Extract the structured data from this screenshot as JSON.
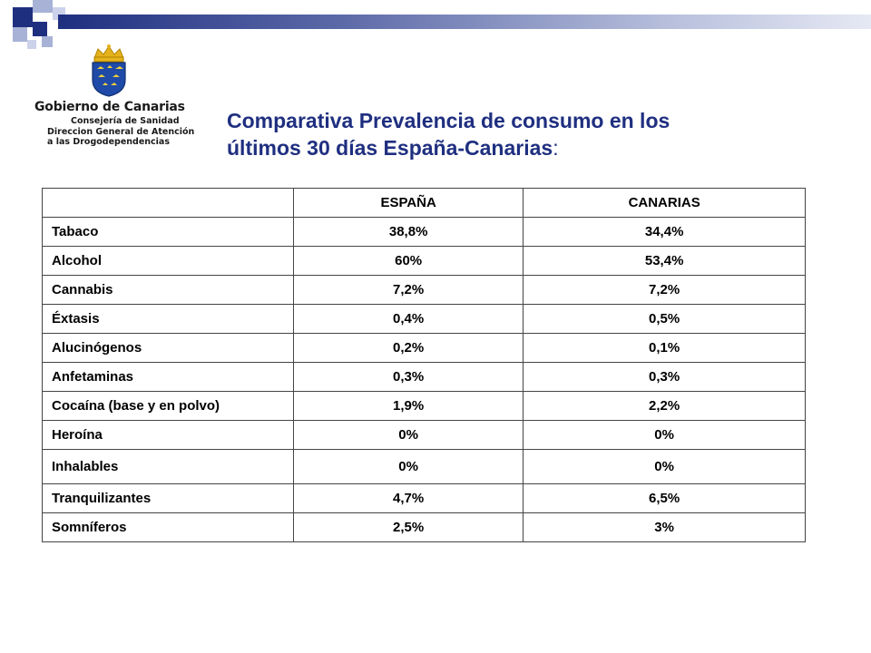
{
  "colors": {
    "primary": "#1f2f80",
    "light": "#a7b2d6"
  },
  "logo": {
    "name": "Gobierno de Canarias",
    "line1": "Consejería de Sanidad",
    "line2": "Direccion General de Atención",
    "line3": "a las Drogodependencias"
  },
  "title": {
    "line1": "Comparativa Prevalencia de consumo en los",
    "line2": "últimos 30 días España-Canarias",
    "colon": ":"
  },
  "table": {
    "headers": [
      "",
      "ESPAÑA",
      "CANARIAS"
    ],
    "rows": [
      {
        "label": "Tabaco",
        "espana": "38,8%",
        "canarias": "34,4%"
      },
      {
        "label": "Alcohol",
        "espana": "60%",
        "canarias": "53,4%"
      },
      {
        "label": "Cannabis",
        "espana": "7,2%",
        "canarias": "7,2%"
      },
      {
        "label": "Éxtasis",
        "espana": "0,4%",
        "canarias": "0,5%"
      },
      {
        "label": "Alucinógenos",
        "espana": "0,2%",
        "canarias": "0,1%"
      },
      {
        "label": "Anfetaminas",
        "espana": "0,3%",
        "canarias": "0,3%"
      },
      {
        "label": "Cocaína (base y en polvo)",
        "espana": "1,9%",
        "canarias": "2,2%"
      },
      {
        "label": "Heroína",
        "espana": "0%",
        "canarias": "0%"
      },
      {
        "label": "Inhalables",
        "espana": "0%",
        "canarias": "0%"
      },
      {
        "label": "Tranquilizantes",
        "espana": "4,7%",
        "canarias": "6,5%"
      },
      {
        "label": "Somníferos",
        "espana": "2,5%",
        "canarias": "3%"
      }
    ]
  }
}
